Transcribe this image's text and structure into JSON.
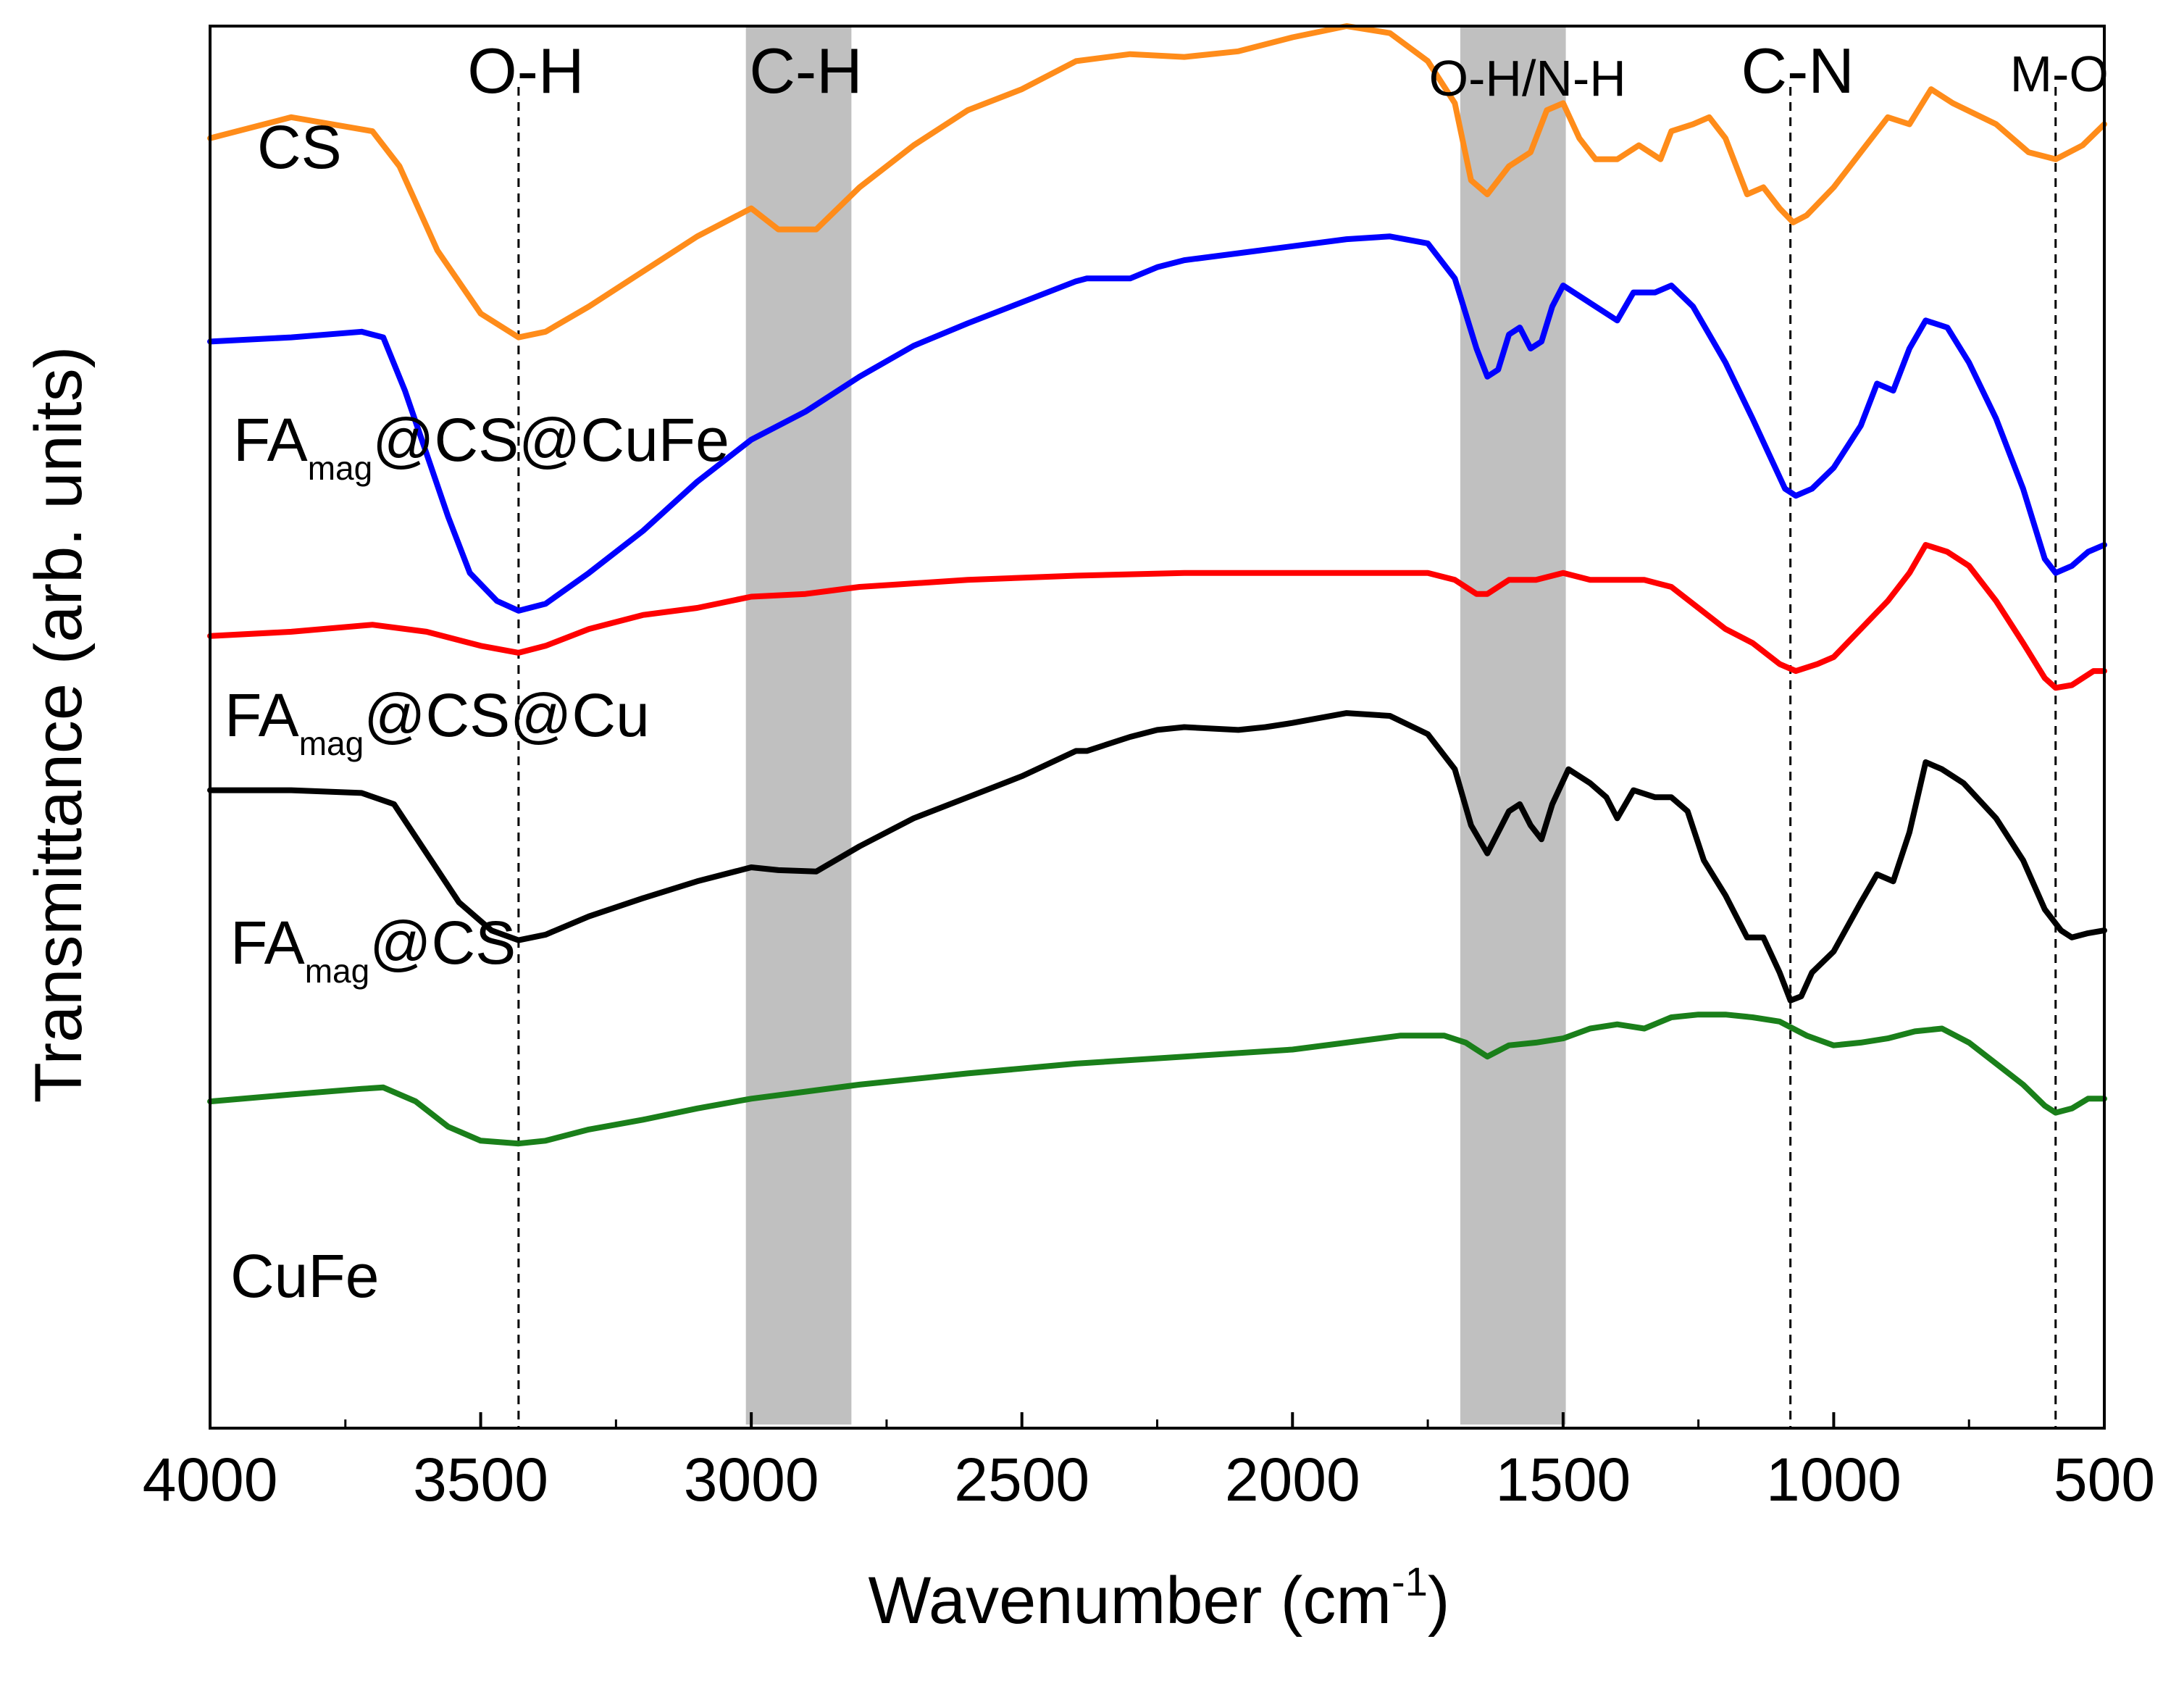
{
  "chart_data": {
    "type": "line",
    "xlabel": "Wavenumber (cm",
    "xlabel_sup": "-1",
    "xlabel_close": ")",
    "ylabel": "Transmittance (arb. units)",
    "xlim": [
      4000,
      500
    ],
    "x_reversed": true,
    "y_ticks_shown": false,
    "x_ticks": [
      4000,
      3500,
      3000,
      2500,
      2000,
      1500,
      1000,
      500
    ],
    "x_tick_labels": [
      "4000",
      "3500",
      "3000",
      "2500",
      "2000",
      "1500",
      "1000",
      "500"
    ],
    "shaded_bands": [
      {
        "name": "C-H",
        "label": "C-H",
        "from": 3010,
        "to": 2815,
        "color": "#c0c0c0"
      },
      {
        "name": "OH-NH",
        "label": "O-H/N-H",
        "from": 1690,
        "to": 1495,
        "color": "#c0c0c0"
      }
    ],
    "reference_lines": [
      {
        "name": "O-H",
        "label": "O-H",
        "x": 3430
      },
      {
        "name": "C-N",
        "label": "C-N",
        "x": 1080
      },
      {
        "name": "M-O",
        "label": "M-O",
        "x": 590
      }
    ],
    "series": [
      {
        "name": "CS",
        "label_main": "CS",
        "label_sub": "",
        "label_tail": "",
        "color": "#ff8c1a",
        "points": [
          [
            4000,
            92
          ],
          [
            3850,
            93.5
          ],
          [
            3700,
            92.5
          ],
          [
            3650,
            90
          ],
          [
            3580,
            84
          ],
          [
            3500,
            79.5
          ],
          [
            3430,
            77.8
          ],
          [
            3380,
            78.2
          ],
          [
            3300,
            80
          ],
          [
            3200,
            82.5
          ],
          [
            3100,
            85
          ],
          [
            3000,
            87
          ],
          [
            2950,
            85.5
          ],
          [
            2880,
            85.5
          ],
          [
            2800,
            88.5
          ],
          [
            2700,
            91.5
          ],
          [
            2600,
            94
          ],
          [
            2500,
            95.5
          ],
          [
            2400,
            97.5
          ],
          [
            2300,
            98
          ],
          [
            2200,
            97.8
          ],
          [
            2100,
            98.2
          ],
          [
            2000,
            99.2
          ],
          [
            1900,
            100
          ],
          [
            1820,
            99.5
          ],
          [
            1750,
            97.5
          ],
          [
            1700,
            94.5
          ],
          [
            1670,
            89
          ],
          [
            1640,
            88
          ],
          [
            1600,
            90
          ],
          [
            1560,
            91
          ],
          [
            1530,
            94
          ],
          [
            1500,
            94.5
          ],
          [
            1470,
            92
          ],
          [
            1440,
            90.5
          ],
          [
            1400,
            90.5
          ],
          [
            1360,
            91.5
          ],
          [
            1320,
            90.5
          ],
          [
            1300,
            92.5
          ],
          [
            1260,
            93
          ],
          [
            1230,
            93.5
          ],
          [
            1200,
            92
          ],
          [
            1160,
            88
          ],
          [
            1130,
            88.5
          ],
          [
            1100,
            87
          ],
          [
            1075,
            86
          ],
          [
            1050,
            86.5
          ],
          [
            1000,
            88.5
          ],
          [
            950,
            91
          ],
          [
            900,
            93.5
          ],
          [
            860,
            93
          ],
          [
            820,
            95.5
          ],
          [
            780,
            94.5
          ],
          [
            700,
            93
          ],
          [
            640,
            91
          ],
          [
            590,
            90.5
          ],
          [
            540,
            91.5
          ],
          [
            500,
            93
          ]
        ]
      },
      {
        "name": "FAmag@CS@CuFe",
        "label_main": "FA",
        "label_sub": "mag",
        "label_tail": "@CS@CuFe",
        "color": "#0000ff",
        "points": [
          [
            4000,
            77.5
          ],
          [
            3850,
            77.8
          ],
          [
            3720,
            78.2
          ],
          [
            3680,
            77.8
          ],
          [
            3640,
            74
          ],
          [
            3600,
            69.5
          ],
          [
            3560,
            65
          ],
          [
            3520,
            61
          ],
          [
            3470,
            59
          ],
          [
            3430,
            58.3
          ],
          [
            3380,
            58.8
          ],
          [
            3300,
            61
          ],
          [
            3200,
            64
          ],
          [
            3100,
            67.5
          ],
          [
            3000,
            70.5
          ],
          [
            2900,
            72.5
          ],
          [
            2800,
            75
          ],
          [
            2700,
            77.2
          ],
          [
            2600,
            78.8
          ],
          [
            2500,
            80.3
          ],
          [
            2400,
            81.8
          ],
          [
            2380,
            82
          ],
          [
            2300,
            82
          ],
          [
            2250,
            82.8
          ],
          [
            2200,
            83.3
          ],
          [
            2100,
            83.8
          ],
          [
            2000,
            84.3
          ],
          [
            1900,
            84.8
          ],
          [
            1820,
            85
          ],
          [
            1750,
            84.5
          ],
          [
            1700,
            82
          ],
          [
            1660,
            77
          ],
          [
            1640,
            75
          ],
          [
            1620,
            75.5
          ],
          [
            1600,
            78
          ],
          [
            1580,
            78.5
          ],
          [
            1560,
            77
          ],
          [
            1540,
            77.5
          ],
          [
            1520,
            80
          ],
          [
            1500,
            81.5
          ],
          [
            1480,
            81
          ],
          [
            1440,
            80
          ],
          [
            1400,
            79
          ],
          [
            1370,
            81
          ],
          [
            1330,
            81
          ],
          [
            1300,
            81.5
          ],
          [
            1260,
            80
          ],
          [
            1200,
            76
          ],
          [
            1150,
            72
          ],
          [
            1120,
            69.5
          ],
          [
            1090,
            67
          ],
          [
            1070,
            66.5
          ],
          [
            1040,
            67
          ],
          [
            1000,
            68.5
          ],
          [
            950,
            71.5
          ],
          [
            920,
            74.5
          ],
          [
            890,
            74
          ],
          [
            860,
            77
          ],
          [
            830,
            79
          ],
          [
            790,
            78.5
          ],
          [
            750,
            76
          ],
          [
            700,
            72
          ],
          [
            650,
            67
          ],
          [
            610,
            62
          ],
          [
            590,
            61
          ],
          [
            560,
            61.5
          ],
          [
            530,
            62.5
          ],
          [
            500,
            63
          ]
        ]
      },
      {
        "name": "FAmag@CS@Cu",
        "label_main": "FA",
        "label_sub": "mag",
        "label_tail": "@CS@Cu",
        "color": "#ff0000",
        "points": [
          [
            4000,
            56.5
          ],
          [
            3850,
            56.8
          ],
          [
            3700,
            57.3
          ],
          [
            3600,
            56.8
          ],
          [
            3500,
            55.8
          ],
          [
            3430,
            55.3
          ],
          [
            3380,
            55.8
          ],
          [
            3300,
            57
          ],
          [
            3200,
            58
          ],
          [
            3100,
            58.5
          ],
          [
            3000,
            59.3
          ],
          [
            2900,
            59.5
          ],
          [
            2800,
            60
          ],
          [
            2600,
            60.5
          ],
          [
            2400,
            60.8
          ],
          [
            2200,
            61
          ],
          [
            2000,
            61
          ],
          [
            1800,
            61
          ],
          [
            1750,
            61
          ],
          [
            1700,
            60.5
          ],
          [
            1660,
            59.5
          ],
          [
            1640,
            59.5
          ],
          [
            1600,
            60.5
          ],
          [
            1550,
            60.5
          ],
          [
            1500,
            61
          ],
          [
            1450,
            60.5
          ],
          [
            1400,
            60.5
          ],
          [
            1350,
            60.5
          ],
          [
            1300,
            60
          ],
          [
            1250,
            58.5
          ],
          [
            1200,
            57
          ],
          [
            1150,
            56
          ],
          [
            1100,
            54.5
          ],
          [
            1070,
            54
          ],
          [
            1030,
            54.5
          ],
          [
            1000,
            55
          ],
          [
            950,
            57
          ],
          [
            900,
            59
          ],
          [
            860,
            61
          ],
          [
            830,
            63
          ],
          [
            790,
            62.5
          ],
          [
            750,
            61.5
          ],
          [
            700,
            59
          ],
          [
            650,
            56
          ],
          [
            610,
            53.5
          ],
          [
            590,
            52.8
          ],
          [
            560,
            53
          ],
          [
            520,
            54
          ],
          [
            500,
            54
          ]
        ]
      },
      {
        "name": "FAmag@CS",
        "label_main": "FA",
        "label_sub": "mag",
        "label_tail": "@CS",
        "color": "#000000",
        "points": [
          [
            4000,
            45.5
          ],
          [
            3850,
            45.5
          ],
          [
            3720,
            45.3
          ],
          [
            3660,
            44.5
          ],
          [
            3600,
            41
          ],
          [
            3540,
            37.5
          ],
          [
            3480,
            35.5
          ],
          [
            3430,
            34.8
          ],
          [
            3380,
            35.2
          ],
          [
            3300,
            36.5
          ],
          [
            3200,
            37.8
          ],
          [
            3100,
            39
          ],
          [
            3000,
            40
          ],
          [
            2950,
            39.8
          ],
          [
            2880,
            39.7
          ],
          [
            2800,
            41.5
          ],
          [
            2700,
            43.5
          ],
          [
            2600,
            45
          ],
          [
            2500,
            46.5
          ],
          [
            2400,
            48.3
          ],
          [
            2380,
            48.3
          ],
          [
            2300,
            49.3
          ],
          [
            2250,
            49.8
          ],
          [
            2200,
            50
          ],
          [
            2100,
            49.8
          ],
          [
            2050,
            50
          ],
          [
            2000,
            50.3
          ],
          [
            1900,
            51
          ],
          [
            1820,
            50.8
          ],
          [
            1750,
            49.5
          ],
          [
            1700,
            47
          ],
          [
            1670,
            43
          ],
          [
            1640,
            41
          ],
          [
            1600,
            44
          ],
          [
            1580,
            44.5
          ],
          [
            1560,
            43
          ],
          [
            1540,
            42
          ],
          [
            1520,
            44.5
          ],
          [
            1490,
            47
          ],
          [
            1450,
            46
          ],
          [
            1420,
            45
          ],
          [
            1400,
            43.5
          ],
          [
            1370,
            45.5
          ],
          [
            1330,
            45
          ],
          [
            1300,
            45
          ],
          [
            1270,
            44
          ],
          [
            1240,
            40.5
          ],
          [
            1200,
            38
          ],
          [
            1160,
            35
          ],
          [
            1130,
            35
          ],
          [
            1100,
            32.5
          ],
          [
            1080,
            30.5
          ],
          [
            1060,
            30.8
          ],
          [
            1040,
            32.5
          ],
          [
            1000,
            34
          ],
          [
            950,
            37.5
          ],
          [
            920,
            39.5
          ],
          [
            890,
            39
          ],
          [
            860,
            42.5
          ],
          [
            830,
            47.5
          ],
          [
            800,
            47
          ],
          [
            760,
            46
          ],
          [
            700,
            43.5
          ],
          [
            650,
            40.5
          ],
          [
            610,
            37
          ],
          [
            580,
            35.5
          ],
          [
            560,
            35
          ],
          [
            530,
            35.3
          ],
          [
            500,
            35.5
          ]
        ]
      },
      {
        "name": "CuFe",
        "label_main": "CuFe",
        "label_sub": "",
        "label_tail": "",
        "color": "#1a7f1a",
        "points": [
          [
            4000,
            23.3
          ],
          [
            3850,
            23.8
          ],
          [
            3720,
            24.2
          ],
          [
            3680,
            24.3
          ],
          [
            3620,
            23.3
          ],
          [
            3560,
            21.5
          ],
          [
            3500,
            20.5
          ],
          [
            3430,
            20.3
          ],
          [
            3380,
            20.5
          ],
          [
            3300,
            21.3
          ],
          [
            3200,
            22
          ],
          [
            3100,
            22.8
          ],
          [
            3000,
            23.5
          ],
          [
            2900,
            24
          ],
          [
            2800,
            24.5
          ],
          [
            2600,
            25.3
          ],
          [
            2400,
            26
          ],
          [
            2200,
            26.5
          ],
          [
            2000,
            27
          ],
          [
            1900,
            27.5
          ],
          [
            1800,
            28
          ],
          [
            1720,
            28
          ],
          [
            1680,
            27.5
          ],
          [
            1640,
            26.5
          ],
          [
            1600,
            27.3
          ],
          [
            1550,
            27.5
          ],
          [
            1500,
            27.8
          ],
          [
            1450,
            28.5
          ],
          [
            1400,
            28.8
          ],
          [
            1350,
            28.5
          ],
          [
            1300,
            29.3
          ],
          [
            1250,
            29.5
          ],
          [
            1200,
            29.5
          ],
          [
            1150,
            29.3
          ],
          [
            1100,
            29
          ],
          [
            1050,
            28
          ],
          [
            1000,
            27.3
          ],
          [
            950,
            27.5
          ],
          [
            900,
            27.8
          ],
          [
            850,
            28.3
          ],
          [
            800,
            28.5
          ],
          [
            750,
            27.5
          ],
          [
            700,
            26
          ],
          [
            650,
            24.5
          ],
          [
            610,
            23
          ],
          [
            590,
            22.5
          ],
          [
            560,
            22.8
          ],
          [
            530,
            23.5
          ],
          [
            500,
            23.5
          ]
        ]
      }
    ]
  }
}
